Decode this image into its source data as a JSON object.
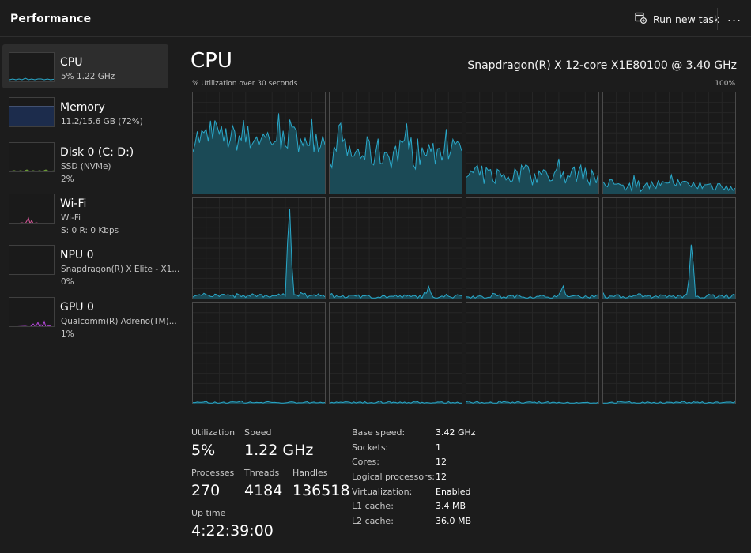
{
  "header": {
    "title": "Performance",
    "run_task_label": "Run new task",
    "more_label": "..."
  },
  "sidebar": {
    "items": [
      {
        "name": "CPU",
        "line1": "5%  1.22 GHz",
        "line2": ""
      },
      {
        "name": "Memory",
        "line1": "11.2/15.6 GB (72%)",
        "line2": ""
      },
      {
        "name": "Disk 0 (C: D:)",
        "line1": "SSD (NVMe)",
        "line2": "2%"
      },
      {
        "name": "Wi-Fi",
        "line1": "Wi-Fi",
        "line2": "S: 0  R: 0 Kbps"
      },
      {
        "name": "NPU 0",
        "line1": "Snapdragon(R) X Elite - X1...",
        "line2": "0%"
      },
      {
        "name": "GPU 0",
        "line1": "Qualcomm(R) Adreno(TM)...",
        "line2": "1%"
      }
    ]
  },
  "main": {
    "title": "CPU",
    "processor": "Snapdragon(R) X 12-core X1E80100 @ 3.40 GHz",
    "graph_label": "% Utilization over 30 seconds",
    "graph_max": "100%"
  },
  "cores": [
    {
      "level": 55,
      "wobble": 14,
      "spikes": []
    },
    {
      "level": 40,
      "wobble": 16,
      "spikes": []
    },
    {
      "level": 18,
      "wobble": 10,
      "spikes": []
    },
    {
      "level": 8,
      "wobble": 6,
      "spikes": []
    },
    {
      "level": 3,
      "wobble": 2,
      "spikes": [
        {
          "at": 0.73,
          "height": 100
        }
      ]
    },
    {
      "level": 2,
      "wobble": 2,
      "spikes": [
        {
          "at": 0.75,
          "height": 12
        }
      ]
    },
    {
      "level": 2,
      "wobble": 2,
      "spikes": [
        {
          "at": 0.73,
          "height": 14
        }
      ]
    },
    {
      "level": 2,
      "wobble": 2,
      "spikes": [
        {
          "at": 0.67,
          "height": 60
        }
      ]
    },
    {
      "level": 1,
      "wobble": 1,
      "spikes": []
    },
    {
      "level": 1,
      "wobble": 1,
      "spikes": []
    },
    {
      "level": 1,
      "wobble": 1,
      "spikes": []
    },
    {
      "level": 1,
      "wobble": 1,
      "spikes": []
    }
  ],
  "stats": {
    "utilization_label": "Utilization",
    "utilization_value": "5%",
    "speed_label": "Speed",
    "speed_value": "1.22 GHz",
    "processes_label": "Processes",
    "processes_value": "270",
    "threads_label": "Threads",
    "threads_value": "4184",
    "handles_label": "Handles",
    "handles_value": "136518",
    "uptime_label": "Up time",
    "uptime_value": "4:22:39:00"
  },
  "details": [
    {
      "label": "Base speed:",
      "value": "3.42 GHz"
    },
    {
      "label": "Sockets:",
      "value": "1"
    },
    {
      "label": "Cores:",
      "value": "12"
    },
    {
      "label": "Logical processors:",
      "value": "12"
    },
    {
      "label": "Virtualization:",
      "value": "Enabled"
    },
    {
      "label": "L1 cache:",
      "value": "3.4 MB"
    },
    {
      "label": "L2 cache:",
      "value": "36.0 MB"
    }
  ],
  "colors": {
    "cpu_line": "#2aa8c9",
    "cpu_fill": "#1b4a56",
    "memory_fill": "#1c2c4c",
    "memory_line": "#6b88c8",
    "disk_line": "#7ab539",
    "wifi_line": "#d8579a",
    "gpu_line": "#b347d8"
  }
}
